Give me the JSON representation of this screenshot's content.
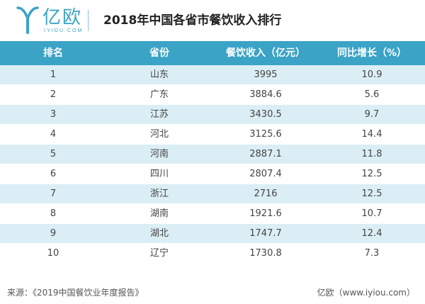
{
  "header": {
    "logo_text": "亿欧",
    "logo_sub": "IYIOU.COM",
    "title": "2018年中国各省市餐饮收入排行"
  },
  "table": {
    "columns": [
      "排名",
      "省份",
      "餐饮收入（亿元）",
      "同比增长（%）"
    ],
    "rows": [
      {
        "rank": "1",
        "province": "山东",
        "revenue": "3995",
        "growth": "10.9"
      },
      {
        "rank": "2",
        "province": "广东",
        "revenue": "3884.6",
        "growth": "5.6"
      },
      {
        "rank": "3",
        "province": "江苏",
        "revenue": "3430.5",
        "growth": "9.7"
      },
      {
        "rank": "4",
        "province": "河北",
        "revenue": "3125.6",
        "growth": "14.4"
      },
      {
        "rank": "5",
        "province": "河南",
        "revenue": "2887.1",
        "growth": "11.8"
      },
      {
        "rank": "6",
        "province": "四川",
        "revenue": "2807.4",
        "growth": "12.5"
      },
      {
        "rank": "7",
        "province": "浙江",
        "revenue": "2716",
        "growth": "12.5"
      },
      {
        "rank": "8",
        "province": "湖南",
        "revenue": "1921.6",
        "growth": "10.7"
      },
      {
        "rank": "9",
        "province": "湖北",
        "revenue": "1747.7",
        "growth": "12.4"
      },
      {
        "rank": "10",
        "province": "辽宁",
        "revenue": "1730.8",
        "growth": "7.3"
      }
    ]
  },
  "footer": {
    "source": "来源：《2019中国餐饮业年度报告》",
    "credit": "亿欧（www.iyiou.com）"
  },
  "colors": {
    "accent": "#3aa3c6",
    "row_alt": "#dbeef5"
  }
}
